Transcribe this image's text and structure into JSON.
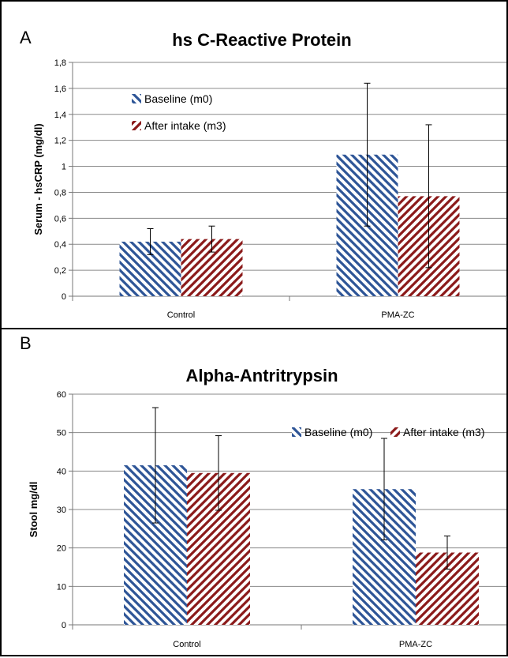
{
  "chart_data": [
    {
      "type": "bar",
      "panel": "A",
      "title": "hs C-Reactive Protein",
      "xlabel": "",
      "ylabel": "Serum - hsCRP (mg/dl)",
      "ylim": [
        0,
        1.8
      ],
      "yticks": [
        "0",
        "0,2",
        "0,4",
        "0,6",
        "0,8",
        "1",
        "1,2",
        "1,4",
        "1,6",
        "1,8"
      ],
      "grid": true,
      "legend": "top-left",
      "categories": [
        "Control",
        "PMA-ZC"
      ],
      "series": [
        {
          "name": "Baseline (m0)",
          "color": "#2e5597",
          "values": [
            0.42,
            1.09
          ],
          "errors": [
            0.1,
            0.55
          ]
        },
        {
          "name": "After intake (m3)",
          "color": "#8b1a1a",
          "values": [
            0.44,
            0.77
          ],
          "errors": [
            0.1,
            0.55
          ]
        }
      ]
    },
    {
      "type": "bar",
      "panel": "B",
      "title": "Alpha-Antritrypsin",
      "xlabel": "",
      "ylabel": "Stool mg/dl",
      "ylim": [
        0,
        60
      ],
      "yticks": [
        "0",
        "10",
        "20",
        "30",
        "40",
        "50",
        "60"
      ],
      "grid": true,
      "legend": "top-right",
      "categories": [
        "Control",
        "PMA-ZC"
      ],
      "series": [
        {
          "name": "Baseline (m0)",
          "color": "#2e5597",
          "values": [
            41.5,
            35.3
          ],
          "errors": [
            15,
            13.2
          ]
        },
        {
          "name": "After intake (m3)",
          "color": "#8b1a1a",
          "values": [
            39.5,
            18.8
          ],
          "errors": [
            9.7,
            4.3
          ]
        }
      ]
    }
  ]
}
